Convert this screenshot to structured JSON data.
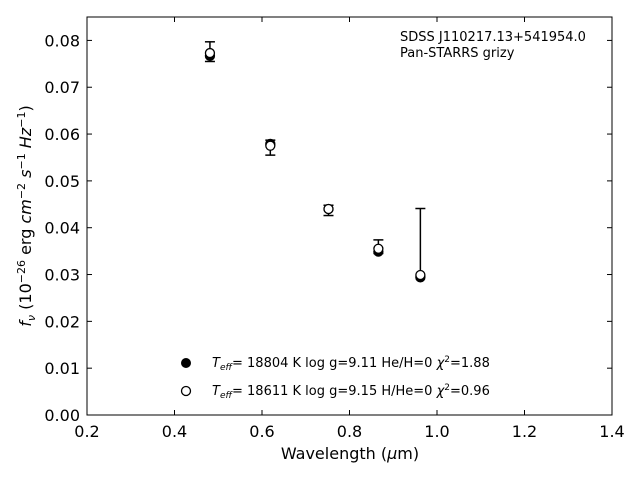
{
  "chart_data": {
    "type": "scatter",
    "annotation": [
      "SDSS J110217.13+541954.0",
      "Pan-STARRS grizy"
    ],
    "xlabel": {
      "main": "Wavelength (",
      "symbol": "μ",
      "unit": "m)"
    },
    "ylabel": {
      "f": "f",
      "nu": "ν",
      "open": " (10",
      "e26": "−26",
      "erg": " erg ",
      "cm": "cm",
      "em2": "−2",
      "s": "s",
      "em1a": "−1",
      "hz": "Hz",
      "em1b": "−1",
      "close": ")"
    },
    "xlim": [
      0.2,
      1.4
    ],
    "ylim": [
      0.0,
      0.085
    ],
    "xticks": [
      0.2,
      0.4,
      0.6,
      0.8,
      1.0,
      1.2,
      1.4
    ],
    "yticks": [
      0.0,
      0.01,
      0.02,
      0.03,
      0.04,
      0.05,
      0.06,
      0.07,
      0.08
    ],
    "tick_labels_x": [
      "0.2",
      "0.4",
      "0.6",
      "0.8",
      "1.0",
      "1.2",
      "1.4"
    ],
    "tick_labels_y": [
      "0.00",
      "0.01",
      "0.02",
      "0.03",
      "0.04",
      "0.05",
      "0.06",
      "0.07",
      "0.08"
    ],
    "observed": {
      "x": [
        0.481,
        0.619,
        0.752,
        0.866,
        0.962
      ],
      "y": [
        0.0772,
        0.0571,
        0.0437,
        0.0359,
        0.0296
      ],
      "yerr_low": [
        0.0755,
        0.0555,
        0.0426,
        0.0345,
        0.0296
      ],
      "yerr_high": [
        0.0797,
        0.0587,
        0.0448,
        0.0374,
        0.0441
      ]
    },
    "series": [
      {
        "marker": "filled-circle",
        "x": [
          0.481,
          0.619,
          0.752,
          0.866,
          0.962
        ],
        "y": [
          0.0767,
          0.0579,
          0.044,
          0.0349,
          0.0294
        ],
        "legend": {
          "teff": "T",
          "eff": "eff",
          "rest": "= 18804 K  log g=9.11  He/H=0  ",
          "chi": "χ",
          "two": "2",
          "val": "=1.88"
        }
      },
      {
        "marker": "open-circle",
        "x": [
          0.481,
          0.619,
          0.752,
          0.866,
          0.962
        ],
        "y": [
          0.0773,
          0.0575,
          0.044,
          0.0355,
          0.0299
        ],
        "legend": {
          "teff": "T",
          "eff": "eff",
          "rest": "= 18611 K  log g=9.15  H/He=0  ",
          "chi": "χ",
          "two": "2",
          "val": "=0.96"
        }
      }
    ],
    "grid": false,
    "legend_position": "lower-center"
  }
}
